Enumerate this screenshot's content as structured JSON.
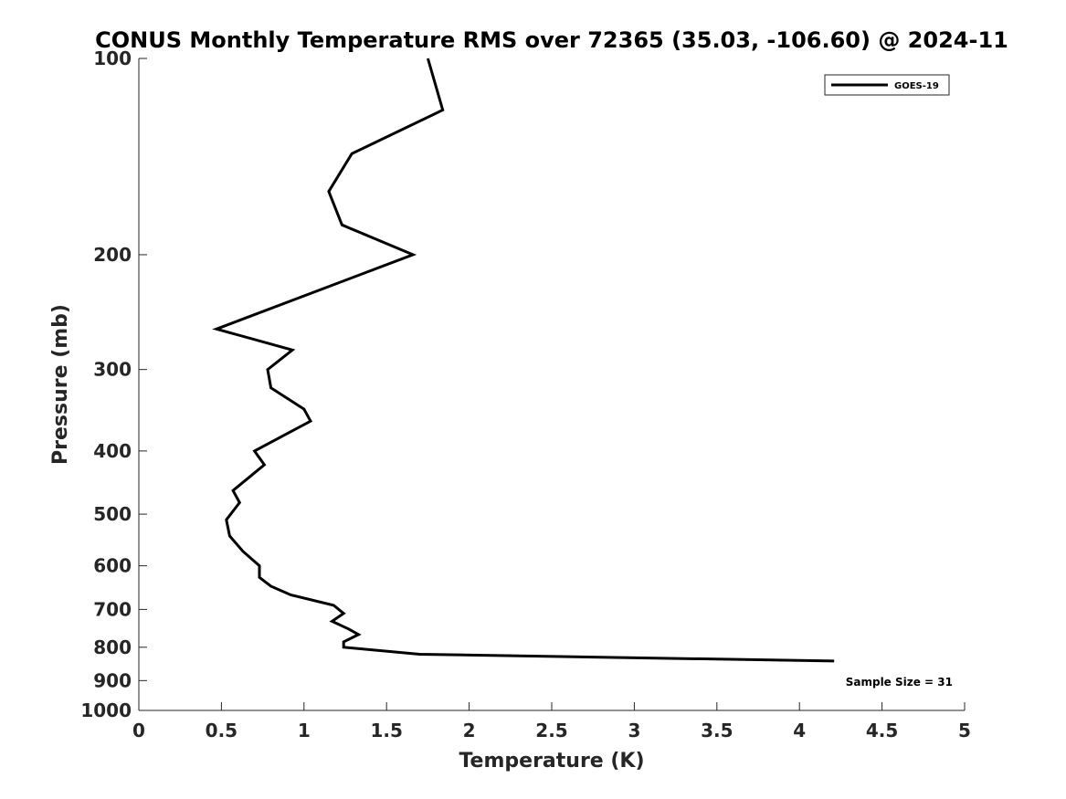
{
  "chart_data": {
    "type": "line",
    "title": "CONUS Monthly Temperature RMS over 72365 (35.03, -106.60) @ 2024-11",
    "xlabel": "Temperature (K)",
    "ylabel": "Pressure (mb)",
    "xlim": [
      0,
      5
    ],
    "ylim": [
      100,
      1000
    ],
    "yscale": "log",
    "y_reversed": true,
    "grid": false,
    "legend_position": "top-right",
    "xticks": [
      "0",
      "0.5",
      "1",
      "1.5",
      "2",
      "2.5",
      "3",
      "3.5",
      "4",
      "4.5",
      "5"
    ],
    "xtick_values": [
      0,
      0.5,
      1,
      1.5,
      2,
      2.5,
      3,
      3.5,
      4,
      4.5,
      5
    ],
    "yticks": [
      "100",
      "200",
      "300",
      "400",
      "500",
      "600",
      "700",
      "800",
      "900",
      "1000"
    ],
    "ytick_values": [
      100,
      200,
      300,
      400,
      500,
      600,
      700,
      800,
      900,
      1000
    ],
    "series": [
      {
        "name": "GOES-19",
        "color": "#000000",
        "points": [
          [
            1.75,
            100
          ],
          [
            1.84,
            120
          ],
          [
            1.29,
            140
          ],
          [
            1.15,
            160
          ],
          [
            1.23,
            180
          ],
          [
            1.66,
            200
          ],
          [
            0.47,
            260
          ],
          [
            0.93,
            280
          ],
          [
            0.78,
            300
          ],
          [
            0.8,
            320
          ],
          [
            1.0,
            345
          ],
          [
            1.04,
            360
          ],
          [
            0.7,
            400
          ],
          [
            0.76,
            420
          ],
          [
            0.57,
            460
          ],
          [
            0.61,
            480
          ],
          [
            0.53,
            510
          ],
          [
            0.55,
            540
          ],
          [
            0.63,
            570
          ],
          [
            0.73,
            600
          ],
          [
            0.73,
            625
          ],
          [
            0.8,
            645
          ],
          [
            0.92,
            665
          ],
          [
            1.18,
            690
          ],
          [
            1.24,
            710
          ],
          [
            1.17,
            730
          ],
          [
            1.27,
            750
          ],
          [
            1.33,
            765
          ],
          [
            1.24,
            785
          ],
          [
            1.24,
            800
          ],
          [
            1.7,
            820
          ],
          [
            4.21,
            840
          ]
        ]
      }
    ],
    "annotations": [
      {
        "text": "Sample Size = 31",
        "position": "bottom-right"
      }
    ]
  }
}
